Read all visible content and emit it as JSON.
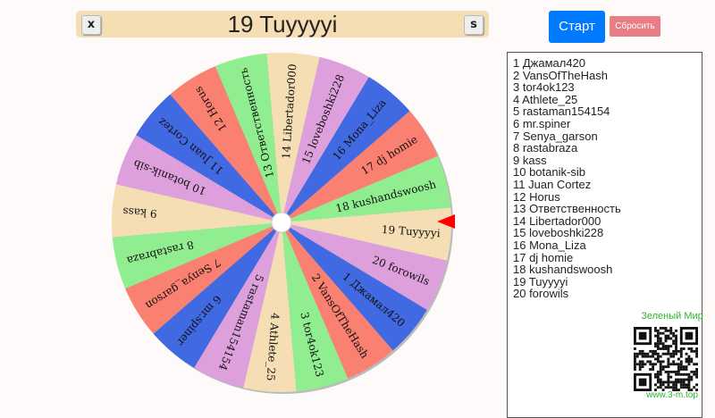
{
  "header": {
    "title": "19 Tuyyyyi",
    "close_label": "x",
    "s_label": "s"
  },
  "controls": {
    "start_label": "Старт",
    "reset_label": "Сбросить"
  },
  "colors": {
    "segments": [
      "#4169e1",
      "#fa8072",
      "#90ee90",
      "#f5deb3",
      "#dda0dd"
    ],
    "pointer": "#ff0000",
    "start_bg": "#007bff",
    "reset_bg": "#e87d86",
    "brand": "#2db52d"
  },
  "participants": [
    "Джамал420",
    "VansOfTheHash",
    "tor4ok123",
    "Athlete_25",
    "rastaman154154",
    "mr.spiner",
    "Senya_garson",
    "rastabraza",
    "kass",
    "botanik-sib",
    "Juan Cortez",
    "Horus",
    "Ответственность",
    "Libertador000",
    "loveboshki228",
    "Mona_Liza",
    "dj homie",
    "kushandswoosh",
    "Tuyyyyi",
    "forowils"
  ],
  "list": [
    "1 Джамал420",
    "2 VansOfTheHash",
    "3 tor4ok123",
    "4 Athlete_25",
    "5 rastaman154154",
    "6 mr.spiner",
    "7 Senya_garson",
    "8 rastabraza",
    "9 kass",
    "10 botanik-sib",
    "11 Juan Cortez",
    "12 Horus",
    "13 Ответственность",
    "14 Libertador000",
    "15 loveboshki228",
    "16 Mona_Liza",
    "17 dj homie",
    "18 kushandswoosh",
    "19 Tuyyyyi",
    "20 forowils"
  ],
  "selected_index": 19,
  "branding": {
    "name": "Зеленый Мир",
    "site": "www.3-m.top"
  }
}
